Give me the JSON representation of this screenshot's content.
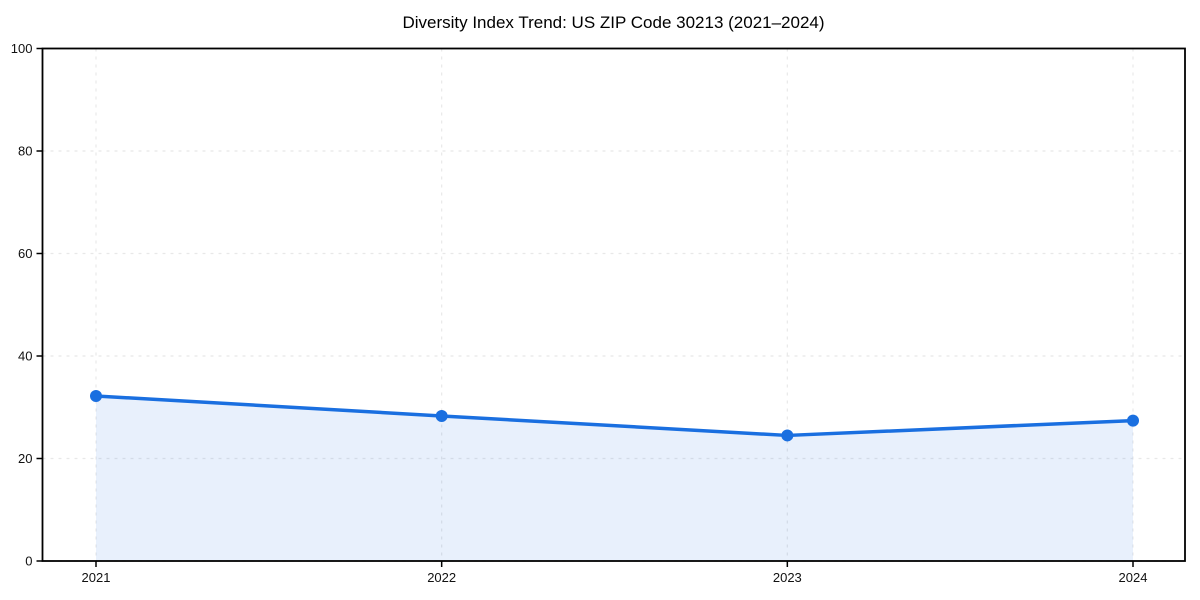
{
  "chart_data": {
    "type": "line",
    "title": "Diversity Index Trend: US ZIP Code 30213 (2021–2024)",
    "xlabel": "",
    "ylabel": "",
    "x": [
      2021,
      2022,
      2023,
      2024
    ],
    "xtick_labels": [
      "2021",
      "2022",
      "2023",
      "2024"
    ],
    "series": [
      {
        "name": "Diversity Index",
        "values": [
          32.2,
          28.3,
          24.5,
          27.4
        ]
      }
    ],
    "ylim": [
      0,
      100
    ],
    "yticks": [
      0,
      20,
      40,
      60,
      80,
      100
    ],
    "ytick_labels": [
      "0",
      "20",
      "40",
      "60",
      "80",
      "100"
    ],
    "grid": true,
    "grid_style": "dashed",
    "legend_position": "none",
    "marker": "circle",
    "area_fill": true,
    "colors": {
      "line": "#1a6fe0",
      "marker": "#1a6fe0",
      "fill": "#1a6fe0",
      "fill_opacity": 0.1,
      "grid": "#e8e8e8",
      "spine": "#000000",
      "tick_text": "#111111",
      "background": "#ffffff"
    }
  }
}
